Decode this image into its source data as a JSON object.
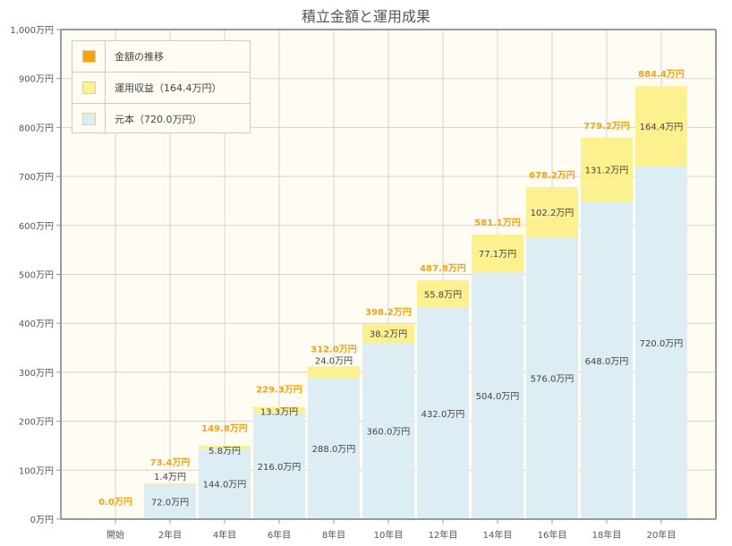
{
  "chart_data": {
    "type": "bar",
    "stacked": true,
    "title": "積立金額と運用成果",
    "categories": [
      "開始",
      "2年目",
      "4年目",
      "6年目",
      "8年目",
      "10年目",
      "12年目",
      "14年目",
      "16年目",
      "18年目",
      "20年目"
    ],
    "series": [
      {
        "name": "元本（720.0万円）",
        "color": "#ddedf4",
        "values": [
          0,
          72.0,
          144.0,
          216.0,
          288.0,
          360.0,
          432.0,
          504.0,
          576.0,
          648.0,
          720.0
        ],
        "labels": [
          "",
          "72.0万円",
          "144.0万円",
          "216.0万円",
          "288.0万円",
          "360.0万円",
          "432.0万円",
          "504.0万円",
          "576.0万円",
          "648.0万円",
          "720.0万円"
        ]
      },
      {
        "name": "運用収益（164.4万円）",
        "color": "#fdf08f",
        "values": [
          0,
          1.4,
          5.8,
          13.3,
          24.0,
          38.2,
          55.8,
          77.1,
          102.2,
          131.2,
          164.4
        ],
        "labels": [
          "",
          "1.4万円",
          "5.8万円",
          "13.3万円",
          "24.0万円",
          "38.2万円",
          "55.8万円",
          "77.1万円",
          "102.2万円",
          "131.2万円",
          "164.4万円"
        ]
      }
    ],
    "totals": {
      "name": "金額の推移",
      "color": "#f5a30f",
      "labels": [
        "0.0万円",
        "73.4万円",
        "149.8万円",
        "229.3万円",
        "312.0万円",
        "398.2万円",
        "487.8万円",
        "581.1万円",
        "678.2万円",
        "779.2万円",
        "884.4万円"
      ]
    },
    "ylim": [
      0,
      1000
    ],
    "yticks": [
      0,
      100,
      200,
      300,
      400,
      500,
      600,
      700,
      800,
      900,
      1000
    ],
    "ytick_labels": [
      "0万円",
      "100万円",
      "200万円",
      "300万円",
      "400万円",
      "500万円",
      "600万円",
      "700万円",
      "800万円",
      "900万円",
      "1,000万円"
    ],
    "grid": true,
    "legend_position": "top-left",
    "colors": {
      "background": "#fffcf4",
      "grid": "#d8d4cc",
      "axis": "#999999"
    }
  }
}
